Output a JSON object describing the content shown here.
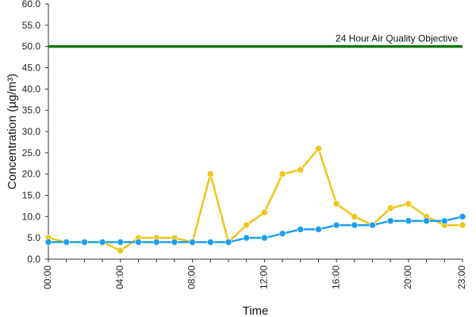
{
  "chart_data": {
    "type": "line",
    "xlabel": "Time",
    "ylabel": "Concentration (µg/m³)",
    "ylim": [
      0,
      60
    ],
    "y_ticks": [
      "0.0",
      "5.0",
      "10.0",
      "15.0",
      "20.0",
      "25.0",
      "30.0",
      "35.0",
      "40.0",
      "45.0",
      "50.0",
      "55.0",
      "60.0"
    ],
    "x_hours": [
      0,
      1,
      2,
      3,
      4,
      5,
      6,
      7,
      8,
      9,
      10,
      11,
      12,
      13,
      14,
      15,
      16,
      17,
      18,
      19,
      20,
      21,
      22,
      23
    ],
    "x_tick_labels": [
      "00:00",
      "04:00",
      "08:00",
      "12:00",
      "16:00",
      "20:00",
      "23:00"
    ],
    "x_tick_hours": [
      0,
      4,
      8,
      12,
      16,
      20,
      23
    ],
    "grid": false,
    "series": [
      {
        "color": "#f0c419",
        "values": [
          5,
          4,
          4,
          4,
          2,
          5,
          5,
          5,
          4,
          20,
          4,
          8,
          11,
          20,
          21,
          26,
          13,
          10,
          8,
          12,
          13,
          10,
          8,
          8
        ]
      },
      {
        "color": "#1a9ff0",
        "values": [
          4,
          4,
          4,
          4,
          4,
          4,
          4,
          4,
          4,
          4,
          4,
          5,
          5,
          6,
          7,
          7,
          8,
          8,
          8,
          9,
          9,
          9,
          9,
          10
        ]
      }
    ],
    "reference_line": {
      "label": "24 Hour Air Quality Objective",
      "value": 50,
      "color": "#137a13"
    }
  }
}
